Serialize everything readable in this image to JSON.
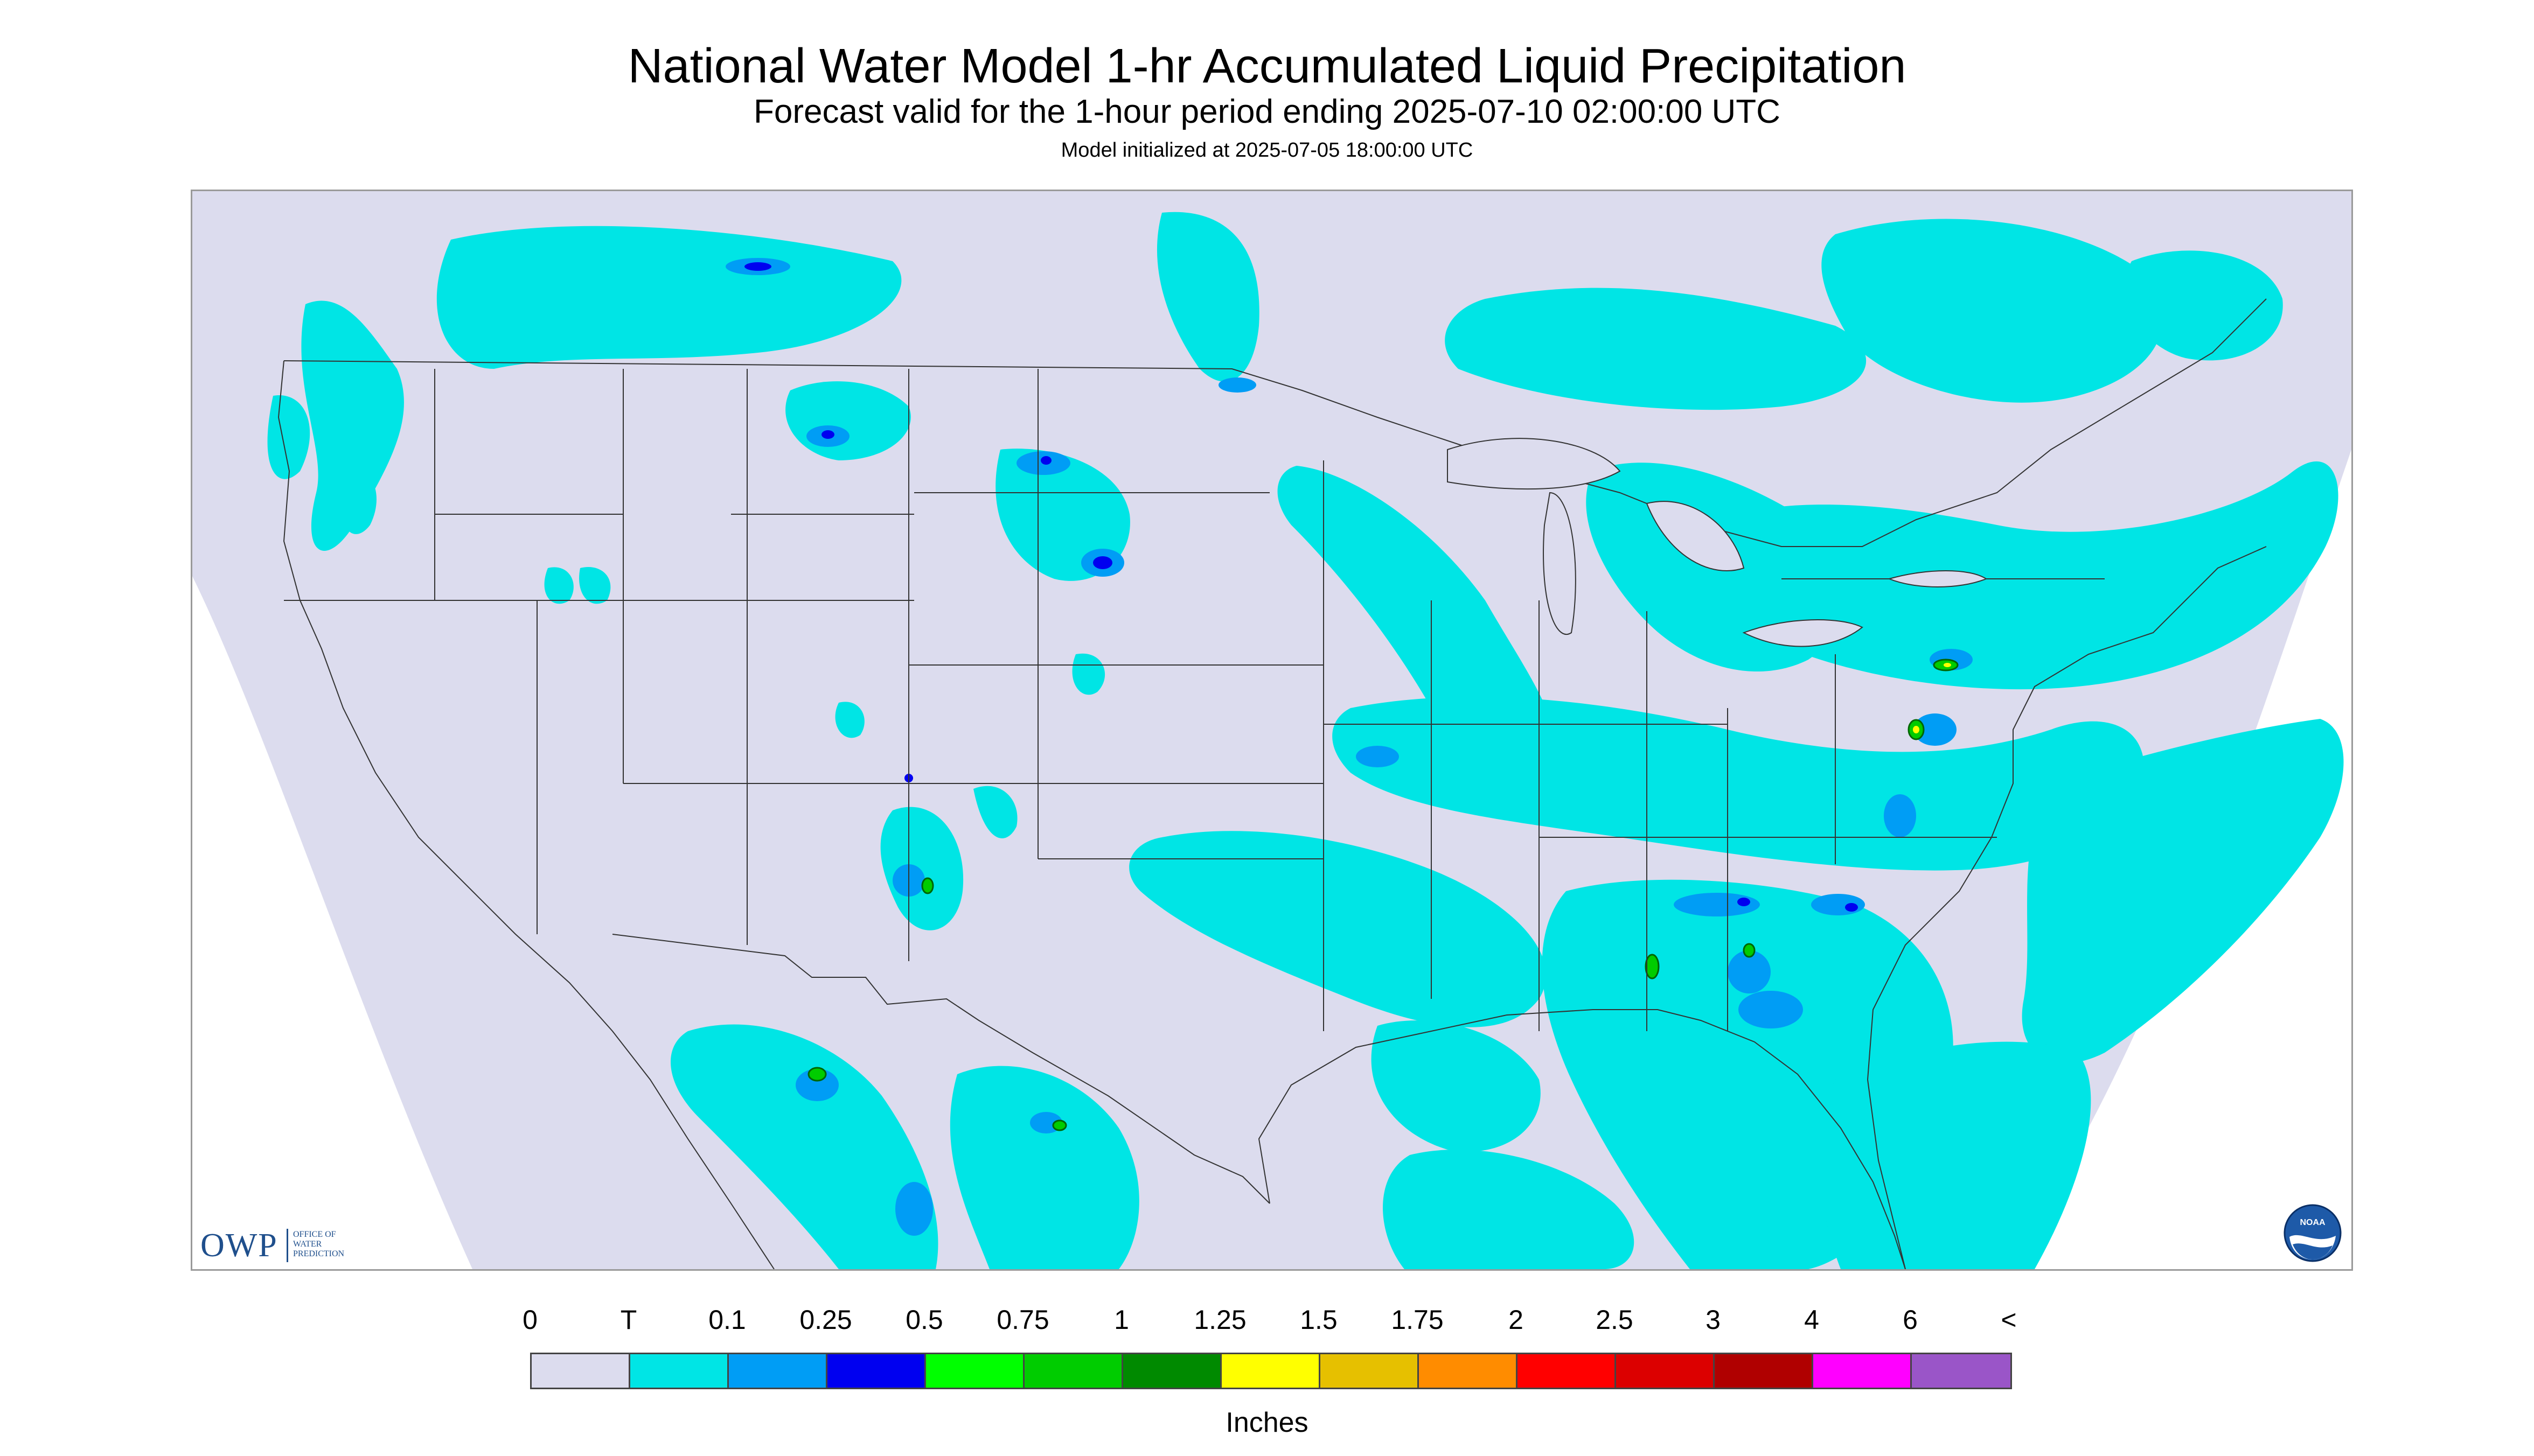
{
  "title": "National Water Model 1-hr Accumulated Liquid Precipitation",
  "subtitle": "Forecast valid for the 1-hour period ending 2025-07-10 02:00:00 UTC",
  "init_line": "Model initialized at 2025-07-05 18:00:00 UTC",
  "logos": {
    "owp_big": "OWP",
    "owp_small": [
      "OFFICE OF",
      "WATER",
      "PREDICTION"
    ],
    "noaa": "NOAA"
  },
  "legend": {
    "tick_labels": [
      "0",
      "T",
      "0.1",
      "0.25",
      "0.5",
      "0.75",
      "1",
      "1.25",
      "1.5",
      "1.75",
      "2",
      "2.5",
      "3",
      "4",
      "6",
      "<"
    ],
    "colors": [
      "#dcdcee",
      "#00e5e5",
      "#009df5",
      "#0000f0",
      "#00ff00",
      "#00cc00",
      "#008a00",
      "#ffff00",
      "#e6c000",
      "#ff8c00",
      "#ff0000",
      "#dc0000",
      "#b00000",
      "#ff00ff",
      "#9a55c8"
    ],
    "units": "Inches"
  },
  "colors": {
    "no_precip": "#dcdcee",
    "trace": "#00e5e5",
    "light": "#009df5",
    "moderate": "#0000f0",
    "heavy": "#00ff00",
    "background": "#ffffff",
    "borders": "#333333"
  },
  "map": {
    "projection": "Lambert conformal conic (CONUS)",
    "region": "Continental United States, southern Canada, northern Mexico, Gulf of Mexico"
  }
}
